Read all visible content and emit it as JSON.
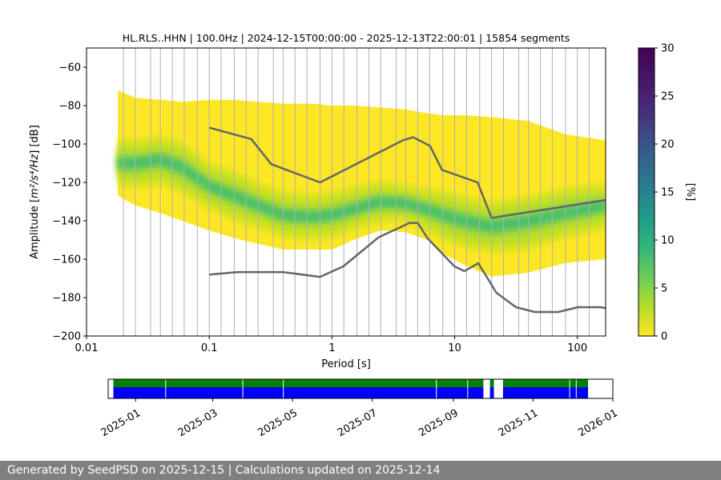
{
  "chart_data": [
    {
      "type": "heatmap",
      "title": "HL.RLS..HHN | 100.0Hz | 2024-12-15T00:00:00 - 2025-12-13T22:00:01 | 15854 segments",
      "xlabel": "Period [s]",
      "ylabel_prefix": "Amplitude [",
      "ylabel_unit": "m²/s⁴/Hz",
      "ylabel_suffix": "] [dB]",
      "x_scale": "log",
      "xlim": [
        0.01,
        170
      ],
      "ylim": [
        -200,
        -50
      ],
      "x_ticks": [
        0.01,
        0.1,
        1,
        10,
        100
      ],
      "x_tick_labels": [
        "0.01",
        "0.1",
        "1",
        "10",
        "100"
      ],
      "y_ticks": [
        -200,
        -180,
        -160,
        -140,
        -120,
        -100,
        -80,
        -60
      ],
      "y_tick_labels": [
        "−200",
        "−180",
        "−160",
        "−140",
        "−120",
        "−100",
        "−80",
        "−60"
      ],
      "grid": "vertical lines at selected periods",
      "period_gridlines": [
        0.02,
        0.025,
        0.0333,
        0.04,
        0.05,
        0.0625,
        0.08,
        0.1,
        0.125,
        0.16,
        0.2,
        0.25,
        0.333,
        0.4,
        0.5,
        0.625,
        0.8,
        1,
        1.25,
        1.6,
        2,
        2.5,
        3.33,
        4,
        5,
        6.25,
        8,
        10,
        12.5,
        16,
        20,
        25,
        33.3,
        40,
        50,
        62.5,
        80,
        100,
        125
      ],
      "psd_distribution": {
        "period": [
          0.018,
          0.025,
          0.04,
          0.06,
          0.1,
          0.16,
          0.25,
          0.4,
          0.7,
          1.0,
          1.5,
          2.5,
          4,
          6,
          8,
          12,
          20,
          40,
          80,
          170
        ],
        "mode_db": [
          -110,
          -110,
          -108,
          -112,
          -122,
          -127,
          -132,
          -137,
          -138,
          -137,
          -134,
          -130,
          -131,
          -134,
          -137,
          -140,
          -143,
          -140,
          -136,
          -132
        ],
        "upper_db": [
          -72,
          -76,
          -77,
          -78,
          -77,
          -77,
          -78,
          -79,
          -79,
          -80,
          -80,
          -81,
          -82,
          -84,
          -85,
          -85,
          -86,
          -88,
          -95,
          -98
        ],
        "lower_db": [
          -127,
          -132,
          -136,
          -140,
          -145,
          -149,
          -152,
          -155,
          -155,
          -155,
          -150,
          -145,
          -146,
          -150,
          -157,
          -163,
          -169,
          -167,
          -162,
          -160
        ],
        "core_low_db": [
          -118,
          -119,
          -117,
          -122,
          -130,
          -136,
          -140,
          -145,
          -146,
          -145,
          -141,
          -137,
          -137,
          -142,
          -146,
          -150,
          -153,
          -151,
          -145,
          -141
        ],
        "core_high_db": [
          -101,
          -102,
          -100,
          -103,
          -114,
          -118,
          -124,
          -129,
          -130,
          -129,
          -126,
          -123,
          -125,
          -127,
          -128,
          -131,
          -134,
          -131,
          -127,
          -124
        ]
      },
      "nhnm": {
        "period": [
          0.1,
          0.22,
          0.32,
          0.8,
          3.8,
          4.6,
          6.3,
          7.9,
          15.4,
          20,
          354.8
        ],
        "db": [
          -91.5,
          -97.4,
          -110.5,
          -120,
          -98,
          -96.5,
          -101,
          -113.5,
          -120,
          -138.5,
          -126
        ]
      },
      "nlnm": {
        "period": [
          0.1,
          0.17,
          0.4,
          0.8,
          1.24,
          2.4,
          4.3,
          5,
          6,
          10,
          12,
          15.6,
          21.9,
          31.6,
          45,
          70,
          101,
          154,
          170
        ],
        "db": [
          -168,
          -166.7,
          -166.7,
          -169.2,
          -163.7,
          -148.6,
          -141.1,
          -141.1,
          -149,
          -163.8,
          -166.2,
          -162.1,
          -177.5,
          -185,
          -187.5,
          -187.5,
          -185,
          -185,
          -185.5
        ]
      },
      "noise_model_color": "#666666",
      "colorbar": {
        "label": "[%]",
        "ticks": [
          0,
          5,
          10,
          15,
          20,
          25,
          30
        ],
        "min": 0,
        "max": 30,
        "colormap": "viridis_r"
      }
    },
    {
      "type": "timeline",
      "x_tick_labels": [
        "2025-01",
        "2025-03",
        "2025-05",
        "2025-07",
        "2025-09",
        "2025-11",
        "2026-01"
      ],
      "x_ticks": [
        "2025-01-01",
        "2025-03-01",
        "2025-05-01",
        "2025-07-01",
        "2025-09-01",
        "2025-11-01",
        "2026-01-01"
      ],
      "xlim": [
        "2024-12-11",
        "2026-01-01"
      ],
      "green_color": "#008000",
      "blue_color": "#0000ff",
      "coverage_spans": [
        {
          "start": "2024-12-15",
          "end": "2025-09-24"
        },
        {
          "start": "2025-09-29",
          "end": "2025-10-02"
        },
        {
          "start": "2025-10-09",
          "end": "2025-12-13"
        }
      ],
      "gaps": [
        "2025-01-24",
        "2025-03-24",
        "2025-04-24",
        "2025-08-19",
        "2025-09-12",
        "2025-11-29",
        "2025-12-04"
      ]
    }
  ],
  "footer": {
    "text": "Generated by SeedPSD on 2025-12-15 | Calculations updated on 2025-12-14"
  }
}
